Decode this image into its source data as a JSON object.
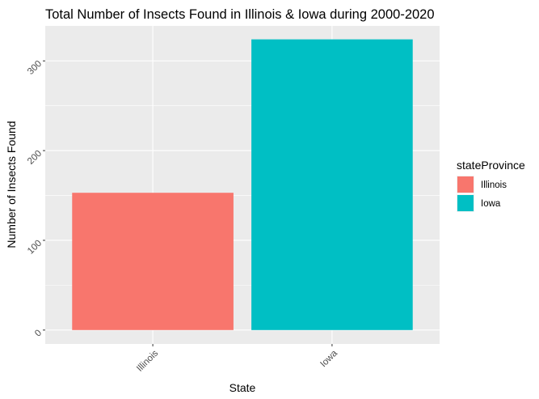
{
  "chart_data": {
    "type": "bar",
    "title": "Total Number of Insects Found in Illinois & Iowa during 2000-2020",
    "xlabel": "State",
    "ylabel": "Number of Insects Found",
    "categories": [
      "Illinois",
      "Iowa"
    ],
    "values": [
      153,
      324
    ],
    "colors": [
      "#F8766D",
      "#00BFC4"
    ],
    "ylim": [
      -15.5,
      339
    ],
    "y_ticks": [
      0,
      100,
      200,
      300
    ],
    "y_tick_labels": [
      "0",
      "100",
      "200",
      "300"
    ],
    "panel_background": "#EBEBEB",
    "grid": true,
    "legend": {
      "title": "stateProvince",
      "placement": "right",
      "entries": [
        "Illinois",
        "Iowa"
      ]
    }
  }
}
